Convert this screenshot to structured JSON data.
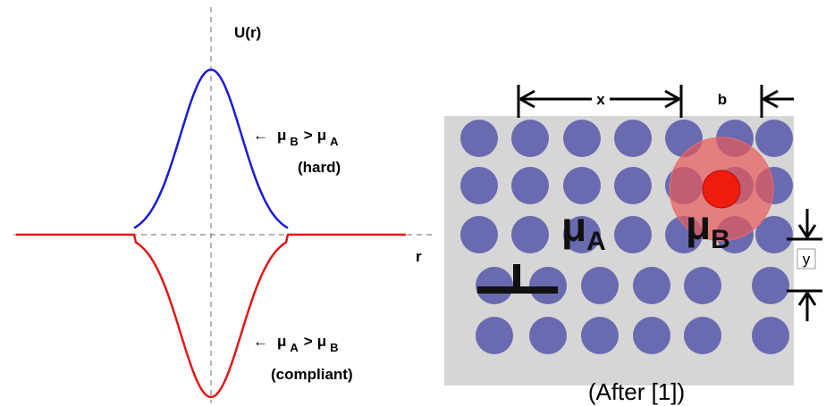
{
  "left_panel": {
    "y_axis_label": "U(r)",
    "x_axis_label": "r",
    "hard": {
      "arrow": "←",
      "parts": [
        "μ",
        "B",
        ">",
        "μ",
        "A"
      ],
      "note": "(hard)"
    },
    "compliant": {
      "arrow": "←",
      "parts": [
        "μ",
        "A",
        ">",
        "μ",
        "B"
      ],
      "note": "(compliant)"
    }
  },
  "right_panel": {
    "dim_x": "x",
    "dim_b": "b",
    "dim_y": "y",
    "matrix_label": {
      "symbol": "μ",
      "sub": "A"
    },
    "particle_label": {
      "symbol": "μ",
      "sub": "B"
    },
    "caption": "(After [1])"
  }
}
